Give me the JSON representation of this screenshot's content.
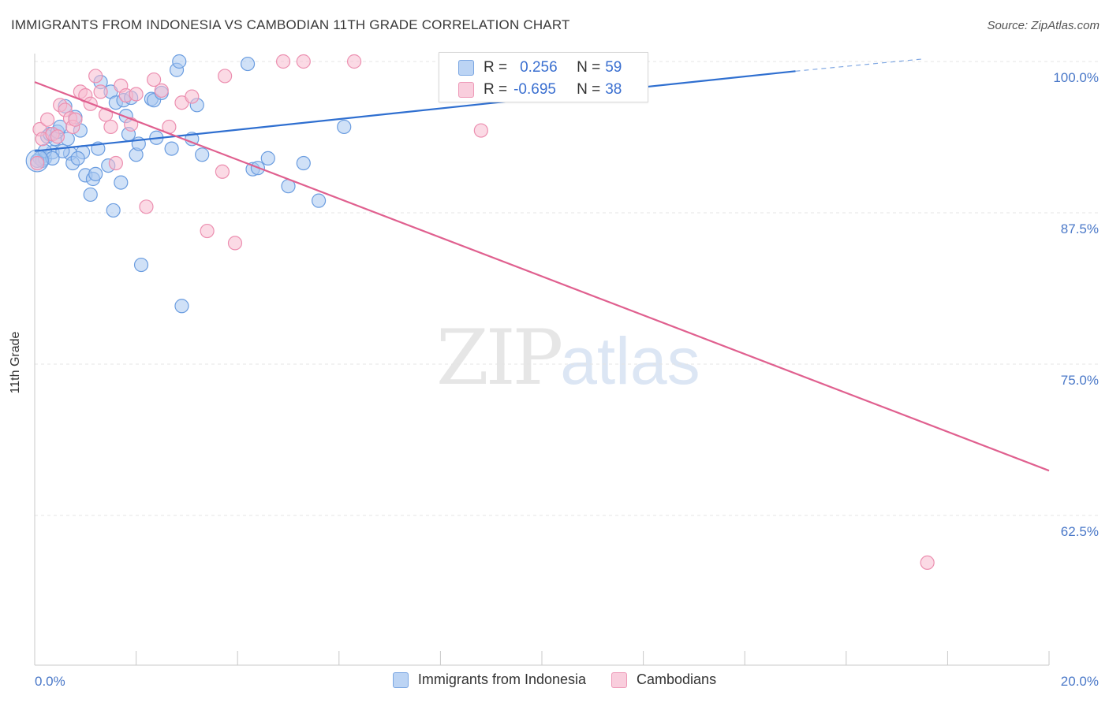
{
  "title": "IMMIGRANTS FROM INDONESIA VS CAMBODIAN 11TH GRADE CORRELATION CHART",
  "source": "Source: ZipAtlas.com",
  "watermark": {
    "zip": "ZIP",
    "atlas": "atlas"
  },
  "legend_top": {
    "rows": [
      {
        "r_label": "R =",
        "r_value": "0.256",
        "n_label": "N =",
        "n_value": "59"
      },
      {
        "r_label": "R =",
        "r_value": "-0.695",
        "n_label": "N =",
        "n_value": "38"
      }
    ]
  },
  "legend_bottom": {
    "items": [
      {
        "label": "Immigrants from Indonesia"
      },
      {
        "label": "Cambodians"
      }
    ]
  },
  "colors": {
    "blue_fill": "#a9c8f0",
    "blue_stroke": "#6b9de0",
    "blue_line": "#2f6fd0",
    "pink_fill": "#f7bcd0",
    "pink_stroke": "#ec8fb0",
    "pink_line": "#e0608f",
    "grid": "#e4e4e4",
    "tick_text": "#4a78c8"
  },
  "chart_data": {
    "type": "scatter",
    "title": "IMMIGRANTS FROM INDONESIA VS CAMBODIAN 11TH GRADE CORRELATION CHART",
    "xlabel": "",
    "ylabel": "11th Grade",
    "xlim": [
      0,
      20
    ],
    "ylim": [
      50,
      100
    ],
    "x_tick_labels": [
      "0.0%",
      "20.0%"
    ],
    "y_ticks": [
      62.5,
      75.0,
      87.5,
      100.0
    ],
    "y_tick_labels": [
      "62.5%",
      "75.0%",
      "87.5%",
      "100.0%"
    ],
    "grid": true,
    "legend_placement": "top-center",
    "series": [
      {
        "name": "Immigrants from Indonesia",
        "color": "#a9c8f0",
        "r": 0.256,
        "n": 59,
        "trend": {
          "x": [
            0,
            15
          ],
          "y": [
            92.6,
            99.2
          ],
          "dashed_to": [
            17.5,
            100.2
          ]
        },
        "points": [
          [
            0.1,
            92.0
          ],
          [
            0.15,
            91.8
          ],
          [
            0.2,
            92.0
          ],
          [
            0.25,
            93.8
          ],
          [
            0.3,
            94.0
          ],
          [
            0.35,
            92.5
          ],
          [
            0.4,
            93.6
          ],
          [
            0.45,
            94.2
          ],
          [
            0.5,
            94.6
          ],
          [
            0.6,
            96.3
          ],
          [
            0.65,
            93.6
          ],
          [
            0.7,
            92.4
          ],
          [
            0.75,
            91.6
          ],
          [
            0.8,
            95.4
          ],
          [
            0.9,
            94.3
          ],
          [
            0.95,
            92.5
          ],
          [
            1.0,
            90.6
          ],
          [
            1.1,
            89.0
          ],
          [
            1.15,
            90.3
          ],
          [
            1.25,
            92.8
          ],
          [
            1.3,
            98.3
          ],
          [
            1.5,
            97.5
          ],
          [
            1.55,
            87.7
          ],
          [
            1.6,
            96.6
          ],
          [
            1.7,
            90.0
          ],
          [
            1.75,
            96.8
          ],
          [
            1.8,
            95.5
          ],
          [
            1.9,
            97.0
          ],
          [
            2.0,
            92.3
          ],
          [
            2.05,
            93.2
          ],
          [
            2.1,
            83.2
          ],
          [
            2.3,
            96.9
          ],
          [
            2.35,
            96.8
          ],
          [
            2.4,
            93.7
          ],
          [
            2.5,
            97.4
          ],
          [
            2.8,
            99.3
          ],
          [
            2.85,
            100.0
          ],
          [
            2.9,
            79.8
          ],
          [
            3.2,
            96.4
          ],
          [
            3.3,
            92.3
          ],
          [
            4.2,
            99.8
          ],
          [
            4.3,
            91.1
          ],
          [
            4.4,
            91.2
          ],
          [
            4.6,
            92.0
          ],
          [
            5.0,
            89.7
          ],
          [
            5.3,
            91.6
          ],
          [
            5.6,
            88.5
          ],
          [
            6.1,
            94.6
          ],
          [
            0.05,
            91.8
          ],
          [
            0.2,
            92.6
          ],
          [
            0.55,
            92.6
          ],
          [
            0.85,
            92.0
          ],
          [
            1.2,
            90.7
          ],
          [
            1.45,
            91.4
          ],
          [
            1.85,
            94.0
          ],
          [
            2.7,
            92.8
          ],
          [
            3.1,
            93.6
          ],
          [
            0.35,
            92.0
          ],
          [
            10.8,
            100.0
          ]
        ]
      },
      {
        "name": "Cambodians",
        "color": "#f7bcd0",
        "r": -0.695,
        "n": 38,
        "trend": {
          "x": [
            0,
            20
          ],
          "y": [
            98.3,
            66.2
          ]
        },
        "points": [
          [
            0.05,
            91.6
          ],
          [
            0.1,
            94.4
          ],
          [
            0.15,
            93.6
          ],
          [
            0.25,
            95.2
          ],
          [
            0.35,
            94.0
          ],
          [
            0.45,
            93.8
          ],
          [
            0.5,
            96.4
          ],
          [
            0.6,
            96.0
          ],
          [
            0.7,
            95.3
          ],
          [
            0.75,
            94.6
          ],
          [
            0.8,
            95.2
          ],
          [
            0.9,
            97.5
          ],
          [
            1.0,
            97.2
          ],
          [
            1.1,
            96.5
          ],
          [
            1.2,
            98.8
          ],
          [
            1.3,
            97.5
          ],
          [
            1.4,
            95.6
          ],
          [
            1.5,
            94.6
          ],
          [
            1.6,
            91.6
          ],
          [
            1.7,
            98.0
          ],
          [
            1.8,
            97.2
          ],
          [
            1.9,
            94.8
          ],
          [
            2.0,
            97.3
          ],
          [
            2.2,
            88.0
          ],
          [
            2.35,
            98.5
          ],
          [
            2.5,
            97.6
          ],
          [
            2.65,
            94.6
          ],
          [
            2.9,
            96.6
          ],
          [
            3.1,
            97.1
          ],
          [
            3.4,
            86.0
          ],
          [
            3.7,
            90.9
          ],
          [
            3.75,
            98.8
          ],
          [
            3.95,
            85.0
          ],
          [
            4.9,
            100.0
          ],
          [
            5.3,
            100.0
          ],
          [
            6.3,
            100.0
          ],
          [
            8.8,
            94.3
          ],
          [
            17.6,
            58.6
          ]
        ]
      }
    ]
  }
}
